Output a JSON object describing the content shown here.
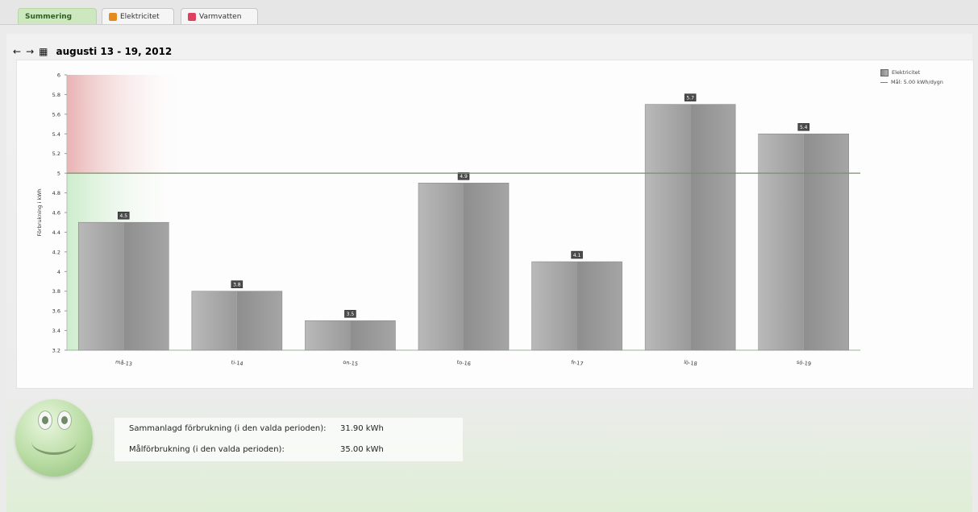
{
  "tabs": [
    {
      "label": "Summering",
      "active": true
    },
    {
      "label": "Elektricitet",
      "icon": "electricity-icon",
      "active": false
    },
    {
      "label": "Varmvatten",
      "icon": "hot-water-icon",
      "active": false
    }
  ],
  "nav": {
    "prev_icon": "arrow-left-icon",
    "next_icon": "arrow-right-icon",
    "calendar_icon": "calendar-icon",
    "title": "augusti 13 - 19, 2012"
  },
  "chart_data": {
    "type": "bar",
    "title": "",
    "xlabel": "",
    "ylabel": "Förbrukning i kWh",
    "categories": [
      "må-13",
      "ti-14",
      "on-15",
      "to-16",
      "fr-17",
      "lö-18",
      "sö-19"
    ],
    "series": [
      {
        "name": "Elektricitet",
        "values": [
          4.5,
          3.8,
          3.5,
          4.9,
          4.1,
          5.7,
          5.4
        ]
      }
    ],
    "data_labels": [
      "4.5",
      "3.8",
      "3.5",
      "4.9",
      "4.1",
      "5.7",
      "5.4"
    ],
    "yticks": [
      "3.2",
      "3.4",
      "3.6",
      "3.8",
      "4",
      "4.2",
      "4.4",
      "4.6",
      "4.8",
      "5",
      "5.2",
      "5.4",
      "5.6",
      "5.8",
      "6"
    ],
    "ylim": [
      3.2,
      6
    ],
    "target": {
      "label": "Mål: 5.00 kWh/dygn",
      "value": 5.0
    },
    "legend_position": "top-right",
    "grid": false,
    "colors": {
      "bar": "#a6a6a6",
      "target_line": "#7a8f6b",
      "over_zone": "#e9b3b3",
      "under_zone": "#cdeccb"
    }
  },
  "summary": {
    "total_label": "Sammanlagd förbrukning (i den valda perioden):",
    "total_value": "31.90 kWh",
    "goal_label": "Målförbrukning (i den valda perioden):",
    "goal_value": "35.00 kWh",
    "mood_icon": "smiley-icon"
  }
}
